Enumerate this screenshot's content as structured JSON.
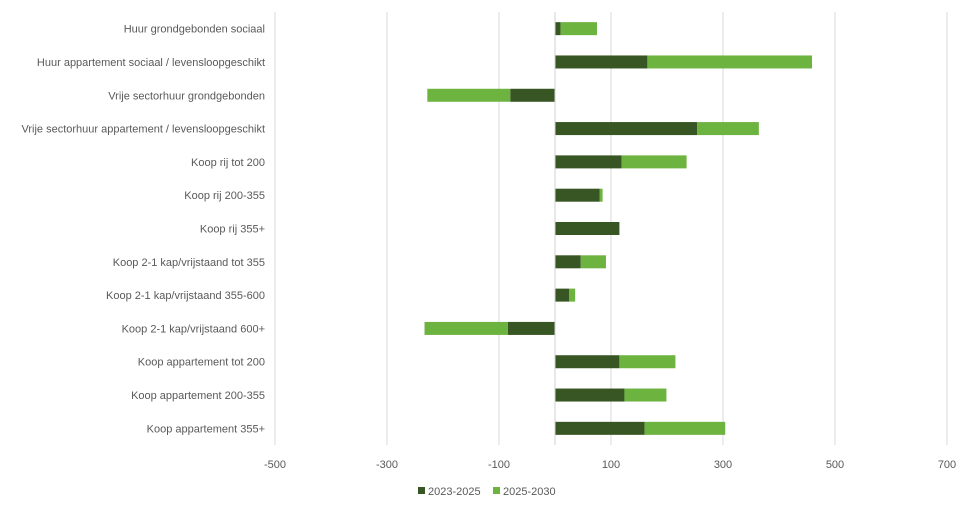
{
  "chart_data": {
    "type": "bar",
    "orientation": "horizontal",
    "stacked": true,
    "title": "",
    "xlabel": "",
    "ylabel": "",
    "xlim": [
      -500,
      700
    ],
    "xticks": [
      -500,
      -300,
      -100,
      100,
      300,
      500,
      700
    ],
    "grid": true,
    "legend_position": "bottom",
    "categories": [
      "Huur grondgebonden sociaal",
      "Huur appartement sociaal / levensloopgeschikt",
      "Vrije sectorhuur grondgebonden",
      "Vrije sectorhuur appartement / levensloopgeschikt",
      "Koop rij tot 200",
      "Koop rij 200-355",
      "Koop rij 355+",
      "Koop 2-1 kap/vrijstaand tot 355",
      "Koop 2-1 kap/vrijstaand 355-600",
      "Koop 2-1 kap/vrijstaand 600+",
      "Koop appartement tot 200",
      "Koop appartement 200-355",
      "Koop appartement 355+"
    ],
    "series": [
      {
        "name": "2023-2025",
        "color": "#375623",
        "values": [
          10,
          165,
          -80,
          254,
          119,
          80,
          115,
          46,
          25,
          -84,
          115,
          124,
          160
        ]
      },
      {
        "name": "2025-2030",
        "color": "#6db33f",
        "values": [
          65,
          294,
          -148,
          110,
          116,
          5,
          0,
          45,
          11,
          -149,
          100,
          75,
          144
        ]
      }
    ]
  }
}
